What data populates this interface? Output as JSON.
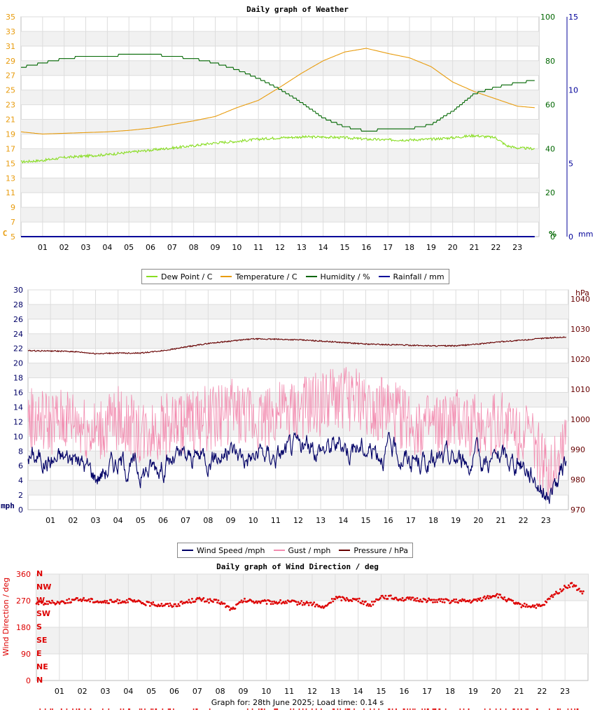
{
  "charts": {
    "weather": {
      "title": "Daily graph of Weather",
      "left_unit": "C",
      "right_unit_1": "%",
      "right_unit_2": "mm",
      "legend": [
        {
          "label": "Dew Point / C",
          "color": "#88dd22"
        },
        {
          "label": "Temperature / C",
          "color": "#e89c0e"
        },
        {
          "label": "Humidity / %",
          "color": "#006600"
        },
        {
          "label": "Rainfall / mm",
          "color": "#000099"
        }
      ]
    },
    "wind": {
      "left_unit": "mph",
      "right_unit": "hPa",
      "legend": [
        {
          "label": "Wind Speed /mph",
          "color": "#000066"
        },
        {
          "label": "Gust / mph",
          "color": "#f28cb0"
        },
        {
          "label": "Pressure / hPa",
          "color": "#660000"
        }
      ]
    },
    "direction": {
      "title": "Daily graph of Wind Direction / deg",
      "ylabel": "Wind Direction / deg"
    }
  },
  "footer": "Graph for: 28th June 2025; Load time: 0.14 s",
  "chart_data": [
    {
      "type": "line",
      "title": "Daily graph of Weather",
      "x_ticks": [
        "01",
        "02",
        "03",
        "04",
        "05",
        "06",
        "07",
        "08",
        "09",
        "10",
        "11",
        "12",
        "13",
        "14",
        "15",
        "16",
        "17",
        "18",
        "19",
        "20",
        "21",
        "22",
        "23"
      ],
      "y_left_ticks": [
        5,
        7,
        9,
        11,
        13,
        15,
        17,
        19,
        21,
        23,
        25,
        27,
        29,
        31,
        33,
        35
      ],
      "y_left_unit": "C",
      "y_right1_ticks": [
        0,
        20,
        40,
        60,
        80,
        100
      ],
      "y_right1_unit": "%",
      "y_right2_ticks": [
        0,
        5,
        10,
        15
      ],
      "y_right2_unit": "mm",
      "ylim_left": [
        5,
        35
      ],
      "ylim_right1": [
        0,
        100
      ],
      "ylim_right2": [
        0,
        15
      ],
      "xlim": [
        0,
        24
      ],
      "grid": true,
      "series": [
        {
          "name": "Dew Point / C",
          "color": "#88dd22",
          "axis": "left",
          "x": [
            0,
            1,
            2,
            3,
            4,
            5,
            6,
            7,
            8,
            9,
            10,
            11,
            12,
            13,
            14,
            15,
            16,
            17,
            18,
            19,
            20,
            21,
            22,
            22.5,
            23,
            23.8
          ],
          "y": [
            15.2,
            15.4,
            15.8,
            16.0,
            16.2,
            16.5,
            16.8,
            17.1,
            17.4,
            17.8,
            18.0,
            18.3,
            18.5,
            18.6,
            18.6,
            18.5,
            18.3,
            18.2,
            18.2,
            18.3,
            18.5,
            18.8,
            18.5,
            17.4,
            17.1,
            17.0
          ]
        },
        {
          "name": "Temperature / C",
          "color": "#e89c0e",
          "axis": "left",
          "x": [
            0,
            1,
            2,
            3,
            4,
            5,
            6,
            7,
            8,
            9,
            10,
            11,
            12,
            13,
            14,
            15,
            16,
            17,
            18,
            19,
            20,
            21,
            22,
            23,
            23.8
          ],
          "y": [
            19.3,
            19.0,
            19.1,
            19.2,
            19.3,
            19.5,
            19.8,
            20.3,
            20.8,
            21.4,
            22.6,
            23.6,
            25.4,
            27.3,
            29.0,
            30.2,
            30.7,
            30.0,
            29.4,
            28.2,
            26.1,
            24.8,
            23.8,
            22.8,
            22.6
          ]
        },
        {
          "name": "Humidity / %",
          "color": "#006600",
          "axis": "right1",
          "x": [
            0,
            1,
            2,
            3,
            4,
            5,
            6,
            7,
            8,
            9,
            10,
            11,
            12,
            13,
            14,
            15,
            16,
            17,
            18,
            19,
            20,
            21,
            22,
            23,
            23.8
          ],
          "y": [
            77,
            79,
            81,
            82,
            82,
            83,
            83,
            82,
            81,
            79,
            76,
            72,
            67,
            61,
            54,
            50,
            48,
            49,
            49,
            51,
            57,
            65,
            68,
            70,
            71
          ]
        },
        {
          "name": "Rainfall / mm",
          "color": "#000099",
          "axis": "right2",
          "x": [
            0,
            23.8
          ],
          "y": [
            0,
            0
          ]
        }
      ]
    },
    {
      "type": "line",
      "x_ticks": [
        "01",
        "02",
        "03",
        "04",
        "05",
        "06",
        "07",
        "08",
        "09",
        "10",
        "11",
        "12",
        "13",
        "14",
        "15",
        "16",
        "17",
        "18",
        "19",
        "20",
        "21",
        "22",
        "23"
      ],
      "y_left_ticks": [
        0,
        2,
        4,
        6,
        8,
        10,
        12,
        14,
        16,
        18,
        20,
        22,
        24,
        26,
        28,
        30
      ],
      "y_left_unit": "mph",
      "y_right_ticks": [
        970,
        980,
        990,
        1000,
        1010,
        1020,
        1030,
        1040
      ],
      "y_right_unit": "hPa",
      "ylim_left": [
        0,
        30
      ],
      "ylim_right": [
        970,
        1043
      ],
      "xlim": [
        0,
        24
      ],
      "grid": true,
      "series": [
        {
          "name": "Wind Speed /mph",
          "color": "#000066",
          "axis": "left",
          "x": [
            0,
            1,
            2,
            3,
            4,
            5,
            6,
            7,
            8,
            9,
            10,
            11,
            12,
            13,
            14,
            15,
            16,
            17,
            18,
            19,
            20,
            21,
            22,
            22.6,
            23,
            23.6,
            23.9
          ],
          "y": [
            7.5,
            6.8,
            7.3,
            4.8,
            6.8,
            5.2,
            6.5,
            6.8,
            7.5,
            8.0,
            7.2,
            7.6,
            8.2,
            8.6,
            8.9,
            8.5,
            8.2,
            6.8,
            6.3,
            7.0,
            6.5,
            7.0,
            6.4,
            4.5,
            2.0,
            4.0,
            6.5
          ]
        },
        {
          "name": "Gust / mph",
          "color": "#f28cb0",
          "axis": "left",
          "x": [
            0,
            1,
            2,
            3,
            4,
            5,
            6,
            7,
            8,
            9,
            10,
            11,
            12,
            13,
            14,
            15,
            16,
            17,
            18,
            19,
            20,
            21,
            22,
            22.6,
            23,
            23.6,
            23.9
          ],
          "y": [
            12.0,
            11.5,
            12.0,
            10.0,
            12.0,
            10.0,
            11.0,
            11.5,
            12.0,
            13.0,
            12.0,
            12.5,
            13.0,
            14.0,
            15.0,
            14.0,
            13.0,
            11.5,
            10.5,
            11.5,
            11.0,
            11.5,
            10.5,
            8.0,
            4.5,
            7.5,
            11.0
          ]
        },
        {
          "name": "Pressure / hPa",
          "color": "#660000",
          "axis": "right",
          "x": [
            0,
            1,
            2,
            3,
            4,
            5,
            6,
            7,
            8,
            9,
            10,
            11,
            12,
            13,
            14,
            15,
            16,
            17,
            18,
            19,
            20,
            21,
            22,
            23,
            23.9
          ],
          "y": [
            1022.8,
            1022.7,
            1022.5,
            1021.8,
            1022.0,
            1022.0,
            1022.8,
            1024.0,
            1025.2,
            1026.0,
            1026.7,
            1026.6,
            1026.4,
            1026.0,
            1025.5,
            1025.0,
            1024.8,
            1024.6,
            1024.4,
            1024.4,
            1025.0,
            1025.8,
            1026.3,
            1027.0,
            1027.3
          ]
        }
      ]
    },
    {
      "type": "scatter",
      "title": "Daily graph of Wind Direction / deg",
      "ylabel": "Wind Direction / deg",
      "x_ticks": [
        "01",
        "02",
        "03",
        "04",
        "05",
        "06",
        "07",
        "08",
        "09",
        "10",
        "11",
        "12",
        "13",
        "14",
        "15",
        "16",
        "17",
        "18",
        "19",
        "20",
        "21",
        "22",
        "23"
      ],
      "y_ticks": [
        0,
        90,
        180,
        270,
        360
      ],
      "compass_labels": [
        "N",
        "NE",
        "E",
        "SE",
        "S",
        "SW",
        "W",
        "NW",
        "N"
      ],
      "ylim": [
        0,
        360
      ],
      "xlim": [
        0,
        24
      ],
      "grid": true,
      "series": [
        {
          "name": "Wind Direction",
          "color": "#dd0000",
          "x": [
            0,
            1,
            2,
            3,
            4,
            5,
            6,
            7,
            8,
            8.5,
            9,
            10,
            11,
            12,
            12.5,
            13,
            14,
            14.5,
            15,
            16,
            17,
            18,
            19,
            20,
            21,
            22,
            22.5,
            23,
            23.3,
            23.8
          ],
          "y": [
            262,
            265,
            275,
            265,
            270,
            258,
            255,
            275,
            265,
            240,
            270,
            265,
            265,
            260,
            245,
            280,
            272,
            255,
            285,
            275,
            272,
            268,
            268,
            290,
            255,
            250,
            290,
            315,
            325,
            295
          ]
        }
      ]
    }
  ]
}
